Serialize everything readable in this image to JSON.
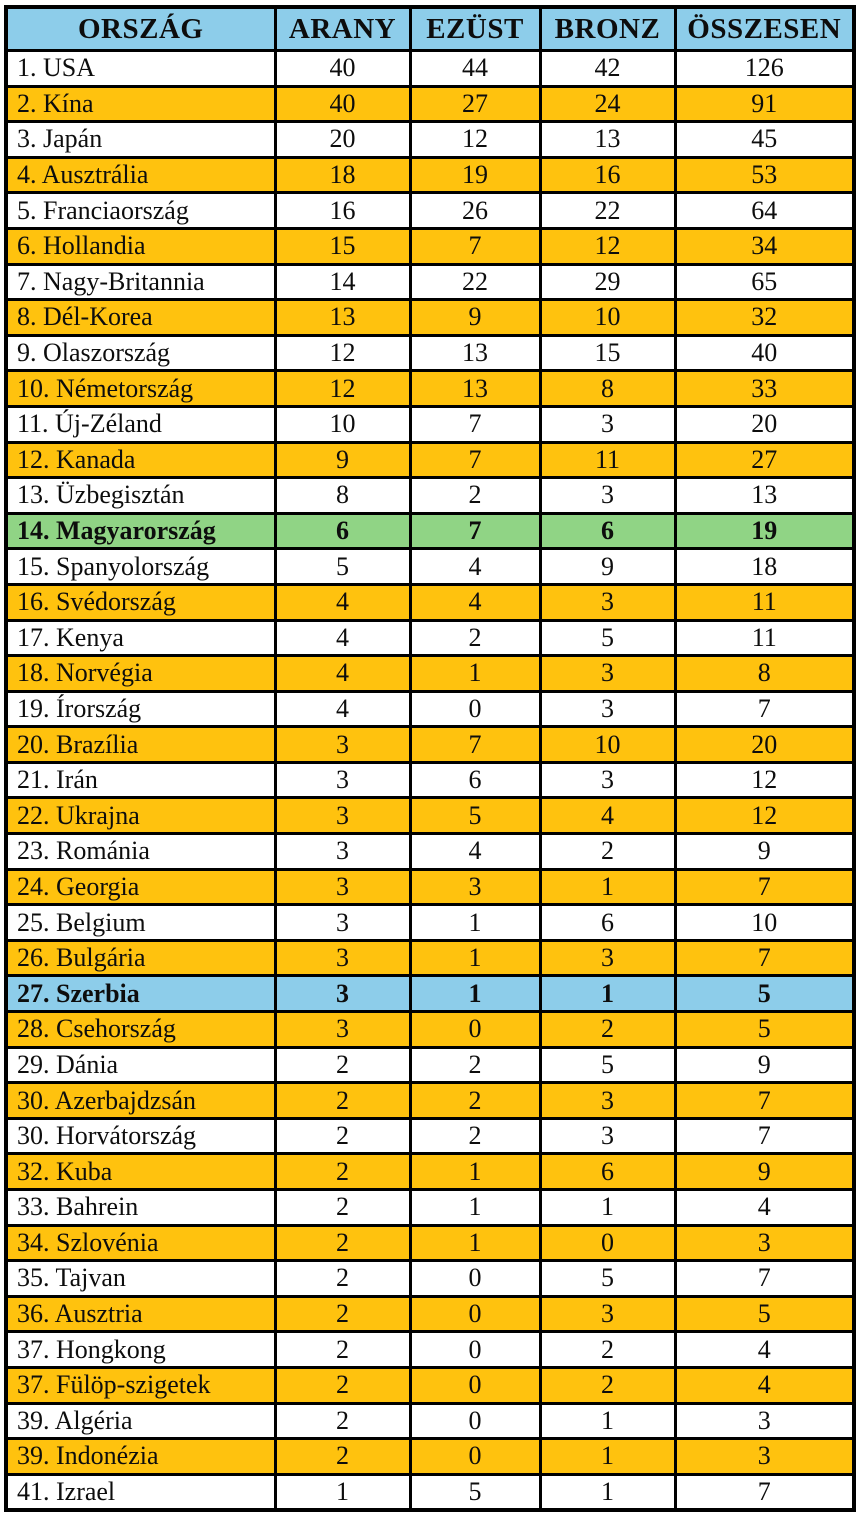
{
  "colors": {
    "header_bg": "#8dcdea",
    "stripe_orange": "#ffc20e",
    "highlight_green_hungary": "#90d485",
    "highlight_blue_serbia": "#8dcdea",
    "border": "#000000",
    "text": "#0d0d0d"
  },
  "table": {
    "columns": [
      "ORSZÁG",
      "ARANY",
      "EZÜST",
      "BRONZ",
      "ÖSSZESEN"
    ],
    "rows": [
      {
        "country": "1. USA",
        "gold": "40",
        "silver": "44",
        "bronze": "42",
        "total": "126",
        "style": "white"
      },
      {
        "country": "2. Kína",
        "gold": "40",
        "silver": "27",
        "bronze": "24",
        "total": "91",
        "style": "orange"
      },
      {
        "country": "3. Japán",
        "gold": "20",
        "silver": "12",
        "bronze": "13",
        "total": "45",
        "style": "white"
      },
      {
        "country": "4. Ausztrália",
        "gold": "18",
        "silver": "19",
        "bronze": "16",
        "total": "53",
        "style": "orange"
      },
      {
        "country": "5. Franciaország",
        "gold": "16",
        "silver": "26",
        "bronze": "22",
        "total": "64",
        "style": "white"
      },
      {
        "country": "6. Hollandia",
        "gold": "15",
        "silver": "7",
        "bronze": "12",
        "total": "34",
        "style": "orange"
      },
      {
        "country": "7. Nagy-Britannia",
        "gold": "14",
        "silver": "22",
        "bronze": "29",
        "total": "65",
        "style": "white"
      },
      {
        "country": "8. Dél-Korea",
        "gold": "13",
        "silver": "9",
        "bronze": "10",
        "total": "32",
        "style": "orange"
      },
      {
        "country": "9. Olaszország",
        "gold": "12",
        "silver": "13",
        "bronze": "15",
        "total": "40",
        "style": "white"
      },
      {
        "country": "10. Németország",
        "gold": "12",
        "silver": "13",
        "bronze": "8",
        "total": "33",
        "style": "orange"
      },
      {
        "country": "11. Új-Zéland",
        "gold": "10",
        "silver": "7",
        "bronze": "3",
        "total": "20",
        "style": "white"
      },
      {
        "country": "12. Kanada",
        "gold": "9",
        "silver": "7",
        "bronze": "11",
        "total": "27",
        "style": "orange"
      },
      {
        "country": "13. Üzbegisztán",
        "gold": "8",
        "silver": "2",
        "bronze": "3",
        "total": "13",
        "style": "white"
      },
      {
        "country": "14. Magyarország",
        "gold": "6",
        "silver": "7",
        "bronze": "6",
        "total": "19",
        "style": "green"
      },
      {
        "country": "15. Spanyolország",
        "gold": "5",
        "silver": "4",
        "bronze": "9",
        "total": "18",
        "style": "white"
      },
      {
        "country": "16. Svédország",
        "gold": "4",
        "silver": "4",
        "bronze": "3",
        "total": "11",
        "style": "orange"
      },
      {
        "country": "17. Kenya",
        "gold": "4",
        "silver": "2",
        "bronze": "5",
        "total": "11",
        "style": "white"
      },
      {
        "country": "18. Norvégia",
        "gold": "4",
        "silver": "1",
        "bronze": "3",
        "total": "8",
        "style": "orange"
      },
      {
        "country": "19. Írország",
        "gold": "4",
        "silver": "0",
        "bronze": "3",
        "total": "7",
        "style": "white"
      },
      {
        "country": "20. Brazília",
        "gold": "3",
        "silver": "7",
        "bronze": "10",
        "total": "20",
        "style": "orange"
      },
      {
        "country": "21. Irán",
        "gold": "3",
        "silver": "6",
        "bronze": "3",
        "total": "12",
        "style": "white"
      },
      {
        "country": "22. Ukrajna",
        "gold": "3",
        "silver": "5",
        "bronze": "4",
        "total": "12",
        "style": "orange"
      },
      {
        "country": "23. Románia",
        "gold": "3",
        "silver": "4",
        "bronze": "2",
        "total": "9",
        "style": "white"
      },
      {
        "country": "24. Georgia",
        "gold": "3",
        "silver": "3",
        "bronze": "1",
        "total": "7",
        "style": "orange"
      },
      {
        "country": "25. Belgium",
        "gold": "3",
        "silver": "1",
        "bronze": "6",
        "total": "10",
        "style": "white"
      },
      {
        "country": "26. Bulgária",
        "gold": "3",
        "silver": "1",
        "bronze": "3",
        "total": "7",
        "style": "orange"
      },
      {
        "country": "27. Szerbia",
        "gold": "3",
        "silver": "1",
        "bronze": "1",
        "total": "5",
        "style": "blue"
      },
      {
        "country": "28. Csehország",
        "gold": "3",
        "silver": "0",
        "bronze": "2",
        "total": "5",
        "style": "orange"
      },
      {
        "country": "29. Dánia",
        "gold": "2",
        "silver": "2",
        "bronze": "5",
        "total": "9",
        "style": "white"
      },
      {
        "country": "30. Azerbajdzsán",
        "gold": "2",
        "silver": "2",
        "bronze": "3",
        "total": "7",
        "style": "orange"
      },
      {
        "country": "30. Horvátország",
        "gold": "2",
        "silver": "2",
        "bronze": "3",
        "total": "7",
        "style": "white"
      },
      {
        "country": "32. Kuba",
        "gold": "2",
        "silver": "1",
        "bronze": "6",
        "total": "9",
        "style": "orange"
      },
      {
        "country": "33. Bahrein",
        "gold": "2",
        "silver": "1",
        "bronze": "1",
        "total": "4",
        "style": "white"
      },
      {
        "country": "34. Szlovénia",
        "gold": "2",
        "silver": "1",
        "bronze": "0",
        "total": "3",
        "style": "orange"
      },
      {
        "country": "35. Tajvan",
        "gold": "2",
        "silver": "0",
        "bronze": "5",
        "total": "7",
        "style": "white"
      },
      {
        "country": "36. Ausztria",
        "gold": "2",
        "silver": "0",
        "bronze": "3",
        "total": "5",
        "style": "orange"
      },
      {
        "country": "37. Hongkong",
        "gold": "2",
        "silver": "0",
        "bronze": "2",
        "total": "4",
        "style": "white"
      },
      {
        "country": "37. Fülöp-szigetek",
        "gold": "2",
        "silver": "0",
        "bronze": "2",
        "total": "4",
        "style": "orange"
      },
      {
        "country": "39. Algéria",
        "gold": "2",
        "silver": "0",
        "bronze": "1",
        "total": "3",
        "style": "white"
      },
      {
        "country": "39. Indonézia",
        "gold": "2",
        "silver": "0",
        "bronze": "1",
        "total": "3",
        "style": "orange"
      },
      {
        "country": "41. Izrael",
        "gold": "1",
        "silver": "5",
        "bronze": "1",
        "total": "7",
        "style": "white"
      }
    ]
  }
}
